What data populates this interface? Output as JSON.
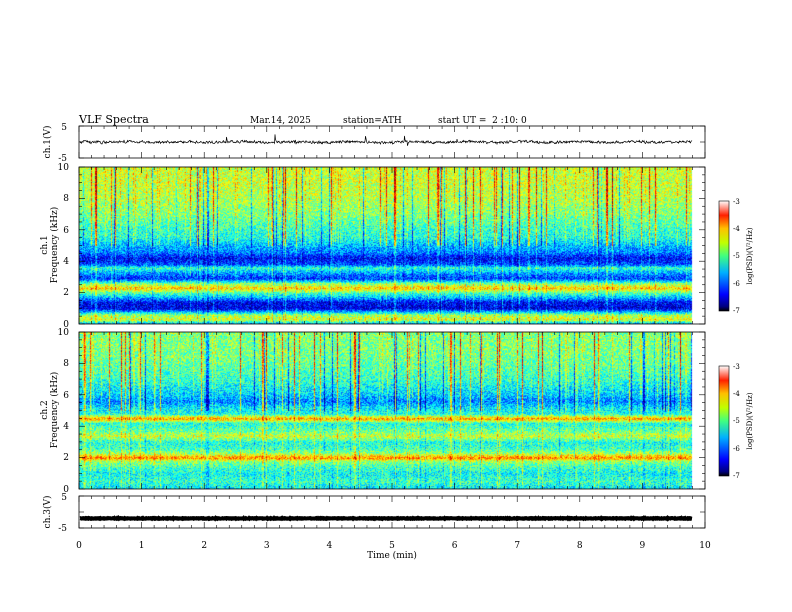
{
  "header": {
    "title": "VLF Spectra",
    "date": "Mar.14, 2025",
    "station": "station=ATH",
    "start_ut": "start UT =  2 :10: 0"
  },
  "chart_data": [
    {
      "type": "line",
      "name": "ch1-waveform",
      "ylabel": "ch.1(V)",
      "ylim": [
        -5,
        5
      ],
      "yticks": [
        "5",
        "-5"
      ],
      "xlim": [
        0,
        10
      ],
      "x_end": 9.8,
      "baseline": 0.0,
      "noise_amplitude": 1.2,
      "grid": false
    },
    {
      "type": "heatmap",
      "name": "ch1-spectrogram",
      "ylabel": "Frequency (kHz)",
      "channel_label": "ch.1",
      "ylim": [
        0,
        10
      ],
      "yticks": [
        "0",
        "2",
        "4",
        "6",
        "8",
        "10"
      ],
      "xlim": [
        0,
        10
      ],
      "x_end": 9.8,
      "colorbar": {
        "label": "log(PSD)(V²/Hz)",
        "range": [
          -7,
          -3
        ],
        "ticks": [
          "-3",
          "-4",
          "-5",
          "-6",
          "-7"
        ]
      },
      "profile_khz": [
        [
          0.0,
          -6.0
        ],
        [
          0.3,
          -4.6
        ],
        [
          0.6,
          -4.9
        ],
        [
          0.8,
          -5.8
        ],
        [
          1.0,
          -6.6
        ],
        [
          1.4,
          -6.5
        ],
        [
          1.8,
          -5.6
        ],
        [
          2.0,
          -5.2
        ],
        [
          2.3,
          -4.3
        ],
        [
          2.6,
          -5.0
        ],
        [
          2.9,
          -6.3
        ],
        [
          3.2,
          -6.0
        ],
        [
          3.6,
          -5.3
        ],
        [
          3.8,
          -6.2
        ],
        [
          4.2,
          -6.5
        ],
        [
          4.6,
          -6.0
        ],
        [
          5.0,
          -5.8
        ],
        [
          5.5,
          -5.4
        ],
        [
          6.0,
          -5.3
        ],
        [
          7.0,
          -5.0
        ],
        [
          8.0,
          -4.8
        ],
        [
          9.0,
          -4.7
        ],
        [
          10.0,
          -4.7
        ]
      ]
    },
    {
      "type": "heatmap",
      "name": "ch2-spectrogram",
      "ylabel": "Frequency (kHz)",
      "channel_label": "ch.2",
      "ylim": [
        0,
        10
      ],
      "yticks": [
        "0",
        "2",
        "4",
        "6",
        "8",
        "10"
      ],
      "xlim": [
        0,
        10
      ],
      "x_end": 9.8,
      "colorbar": {
        "label": "log(PSD)(V²/Hz)",
        "range": [
          -7,
          -3
        ],
        "ticks": [
          "-3",
          "-4",
          "-5",
          "-6",
          "-7"
        ]
      },
      "profile_khz": [
        [
          0.0,
          -5.6
        ],
        [
          0.5,
          -5.3
        ],
        [
          1.0,
          -5.5
        ],
        [
          1.5,
          -5.2
        ],
        [
          1.8,
          -4.9
        ],
        [
          2.0,
          -4.0
        ],
        [
          2.3,
          -4.9
        ],
        [
          2.6,
          -5.3
        ],
        [
          3.0,
          -5.4
        ],
        [
          3.4,
          -4.7
        ],
        [
          3.7,
          -5.1
        ],
        [
          4.2,
          -5.4
        ],
        [
          4.5,
          -4.1
        ],
        [
          4.8,
          -5.4
        ],
        [
          5.2,
          -5.6
        ],
        [
          5.6,
          -6.0
        ],
        [
          6.0,
          -5.7
        ],
        [
          7.0,
          -5.3
        ],
        [
          8.0,
          -5.1
        ],
        [
          9.0,
          -5.0
        ],
        [
          10.0,
          -5.0
        ]
      ]
    },
    {
      "type": "line",
      "name": "ch3-waveform",
      "ylabel": "ch.3(V)",
      "ylim": [
        -5,
        5
      ],
      "yticks": [
        "5",
        "-5"
      ],
      "xlim": [
        0,
        10
      ],
      "x_end": 9.8,
      "baseline": -2.0,
      "noise_amplitude": 0.2,
      "xlabel": "Time (min)",
      "xticks": [
        "0",
        "1",
        "2",
        "3",
        "4",
        "5",
        "6",
        "7",
        "8",
        "9",
        "10"
      ],
      "grid": false
    }
  ]
}
